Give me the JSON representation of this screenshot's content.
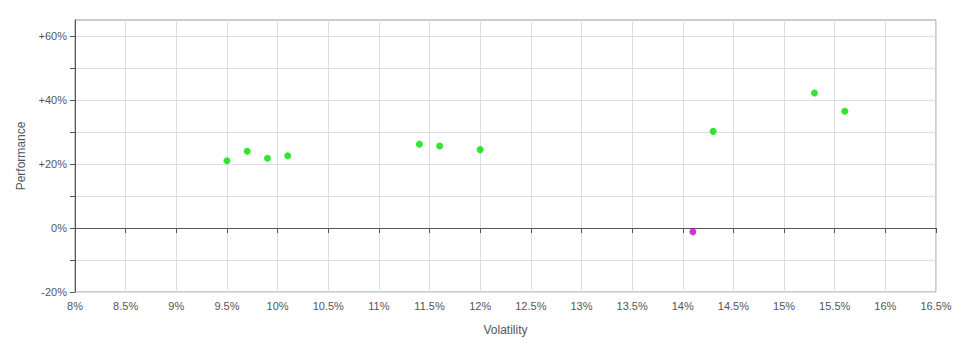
{
  "chart_data": {
    "type": "scatter",
    "xlabel": "Volatility",
    "ylabel": "Performance",
    "xlim": [
      0.08,
      0.165
    ],
    "ylim": [
      -0.2,
      0.65
    ],
    "xticks": [
      {
        "value": 0.08,
        "label": "8%"
      },
      {
        "value": 0.085,
        "label": "8.5%"
      },
      {
        "value": 0.09,
        "label": "9%"
      },
      {
        "value": 0.095,
        "label": "9.5%"
      },
      {
        "value": 0.1,
        "label": "10%"
      },
      {
        "value": 0.105,
        "label": "10.5%"
      },
      {
        "value": 0.11,
        "label": "11%"
      },
      {
        "value": 0.115,
        "label": "11.5%"
      },
      {
        "value": 0.12,
        "label": "12%"
      },
      {
        "value": 0.125,
        "label": "12.5%"
      },
      {
        "value": 0.13,
        "label": "13%"
      },
      {
        "value": 0.135,
        "label": "13.5%"
      },
      {
        "value": 0.14,
        "label": "14%"
      },
      {
        "value": 0.145,
        "label": "14.5%"
      },
      {
        "value": 0.15,
        "label": "15%"
      },
      {
        "value": 0.155,
        "label": "15.5%"
      },
      {
        "value": 0.16,
        "label": "16%"
      },
      {
        "value": 0.165,
        "label": "16.5%"
      }
    ],
    "yticks": [
      {
        "value": -0.2,
        "label": "-20%"
      },
      {
        "value": -0.1,
        "label": null
      },
      {
        "value": 0.0,
        "label": "0%"
      },
      {
        "value": 0.1,
        "label": null
      },
      {
        "value": 0.2,
        "label": "+20%"
      },
      {
        "value": 0.3,
        "label": null
      },
      {
        "value": 0.4,
        "label": "+40%"
      },
      {
        "value": 0.5,
        "label": null
      },
      {
        "value": 0.6,
        "label": "+60%"
      }
    ],
    "grid": true,
    "series": [
      {
        "color": "#00dd00",
        "x": [
          0.095,
          0.097,
          0.099,
          0.101,
          0.114,
          0.116,
          0.12,
          0.143,
          0.153,
          0.156
        ],
        "values": [
          0.21,
          0.24,
          0.218,
          0.226,
          0.262,
          0.256,
          0.245,
          0.302,
          0.422,
          0.365
        ]
      },
      {
        "color": "#cc00cc",
        "x": [
          0.141
        ],
        "values": [
          -0.012
        ]
      }
    ]
  }
}
